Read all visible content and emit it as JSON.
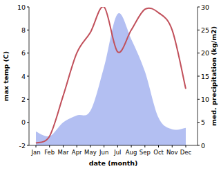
{
  "chart_data": {
    "type": "line",
    "x_label": "date (month)",
    "y_label": "max temp (C)",
    "y2_label": "med. precipitation (kg/m2)",
    "categories": [
      "Jan",
      "Feb",
      "Mar",
      "Apr",
      "May",
      "Jun",
      "Jul",
      "Aug",
      "Sep",
      "Oct",
      "Nov",
      "Dec"
    ],
    "ylim": [
      -2,
      10
    ],
    "yticks": [
      -2,
      0,
      2,
      4,
      6,
      8,
      10
    ],
    "y2lim": [
      0,
      30
    ],
    "y2ticks": [
      0,
      5,
      10,
      15,
      20,
      25,
      30
    ],
    "series": [
      {
        "name": "med. precipitation",
        "type": "area",
        "axis": "y2",
        "color": "#b3bff2",
        "values": [
          3,
          2,
          5,
          6.5,
          7.5,
          17,
          28.5,
          23,
          16,
          6,
          3.5,
          3.8
        ]
      },
      {
        "name": "max temp",
        "type": "line",
        "color": "#c1505b",
        "values": [
          -1.8,
          -1.2,
          2.3,
          6.0,
          7.8,
          10.0,
          6.1,
          8.0,
          9.8,
          9.5,
          8.0,
          2.9
        ]
      }
    ]
  }
}
